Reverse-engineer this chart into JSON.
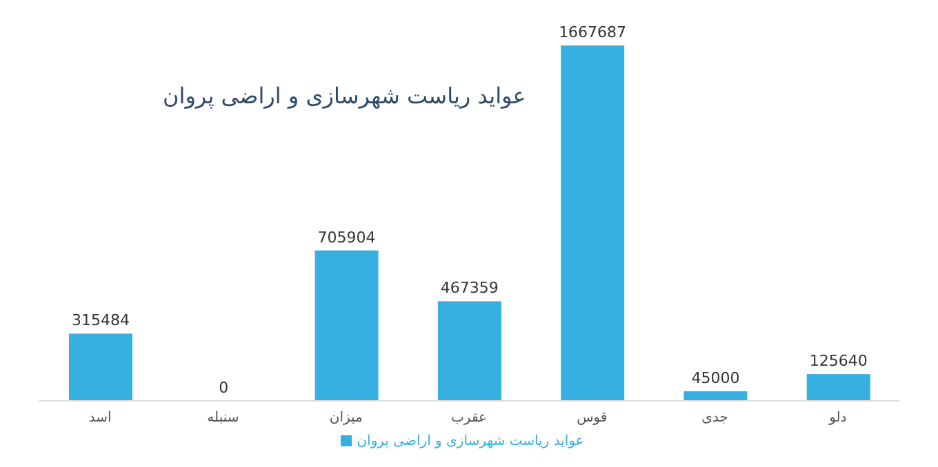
{
  "chart_data": {
    "type": "bar",
    "title": "عواید ریاست شهرسازی و اراضی پروان",
    "categories": [
      "اسد",
      "سنبله",
      "میزان",
      "عقرب",
      "قوس",
      "جدی",
      "دلو"
    ],
    "series": [
      {
        "name": "عواید ریاست شهرسازی و اراضی پروان",
        "color": "#35b0e0",
        "values": [
          315484,
          0,
          705904,
          467359,
          1667687,
          45000,
          125640
        ]
      }
    ],
    "data_labels": true,
    "legend": "bottom",
    "grid": false
  }
}
